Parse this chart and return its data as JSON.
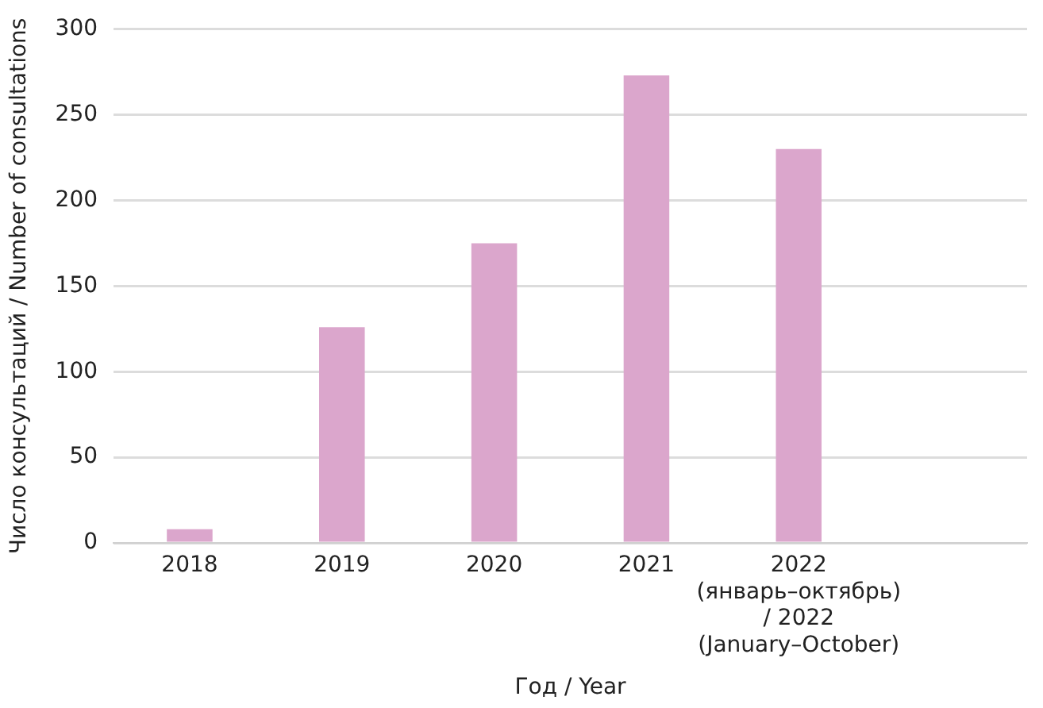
{
  "chart_data": {
    "type": "bar",
    "xlabel": "Год / Year",
    "ylabel": "Число консультаций / Number of consultations",
    "categories": [
      "2018",
      "2019",
      "2020",
      "2021",
      "2022 (январь–октябрь) / 2022 (January–October)",
      null
    ],
    "values": [
      8,
      126,
      175,
      273,
      230,
      null
    ],
    "color": "#dba6cc",
    "ylim": [
      0,
      300
    ],
    "yticks": [
      0,
      50,
      100,
      150,
      200,
      250,
      300
    ],
    "grid": "y",
    "legend": false
  }
}
